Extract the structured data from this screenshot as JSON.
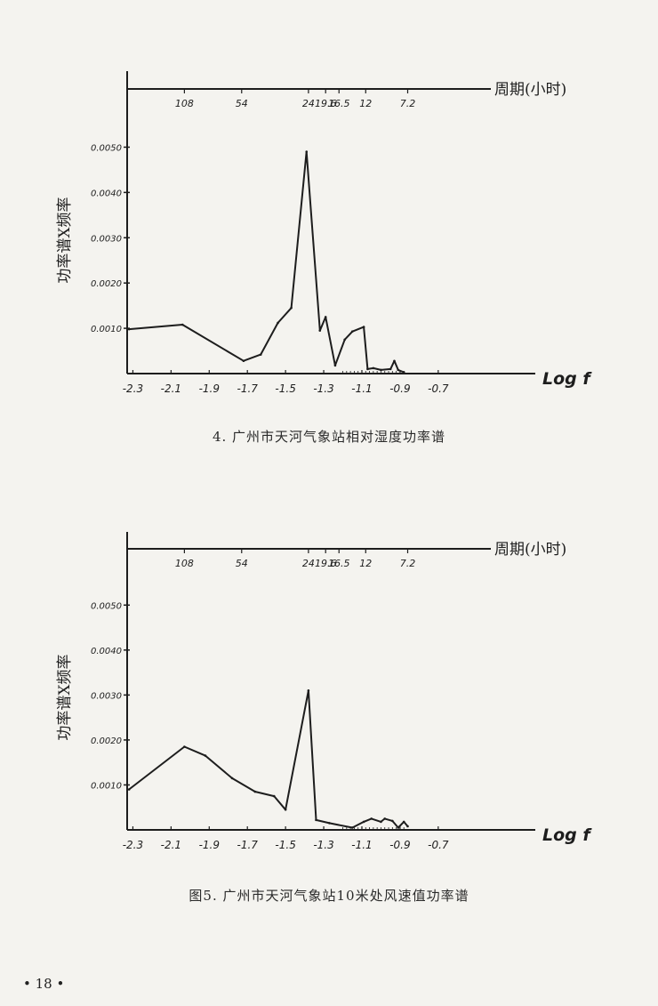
{
  "page": {
    "page_number": "• 18 •",
    "accent_color": "#1d1d1d",
    "paper_color": "#f4f3ef"
  },
  "chart_data": [
    {
      "type": "line",
      "caption": "4. 广州市天河气象站相对湿度功率谱",
      "ylabel": "功率谱X频率",
      "xlabel": "Log f",
      "top_axis_label": "周期(小时)",
      "top_axis_ticks": [
        {
          "x": -2.03,
          "label": "108"
        },
        {
          "x": -1.73,
          "label": "54"
        },
        {
          "x": -1.38,
          "label": "24"
        },
        {
          "x": -1.29,
          "label": "19.6"
        },
        {
          "x": -1.22,
          "label": "16.5"
        },
        {
          "x": -1.08,
          "label": "12"
        },
        {
          "x": -0.86,
          "label": "7.2"
        }
      ],
      "x_ticks": [
        -2.3,
        -2.1,
        -1.9,
        -1.7,
        -1.5,
        -1.3,
        -1.1,
        -0.9,
        -0.7
      ],
      "x_tick_labels": [
        "-2.3",
        "-2.1",
        "-1.9",
        "-1.7",
        "-1.5",
        "-1.3",
        "-1.1",
        "-0.9",
        "-0.7"
      ],
      "y_ticks": [
        0.001,
        0.002,
        0.003,
        0.004,
        0.005
      ],
      "y_tick_labels": [
        "0.0010",
        "0.0020",
        "0.0030",
        "0.0040",
        "0.0050"
      ],
      "xlim": [
        -2.33,
        -0.62
      ],
      "ylim": [
        0,
        0.0055
      ],
      "grid": false,
      "legend": "none",
      "series": [
        {
          "x": [
            -2.32,
            -2.04,
            -1.72,
            -1.63,
            -1.54,
            -1.47,
            -1.39,
            -1.32,
            -1.29,
            -1.24,
            -1.19,
            -1.15,
            -1.09,
            -1.07,
            -1.04,
            -1.0,
            -0.95,
            -0.93,
            -0.91,
            -0.88
          ],
          "y": [
            0.00098,
            0.00108,
            0.00028,
            0.00042,
            0.00112,
            0.00145,
            0.0049,
            0.00095,
            0.00125,
            0.00018,
            0.00075,
            0.00093,
            0.00103,
            0.0001,
            0.00012,
            8e-05,
            0.0001,
            0.00028,
            8e-05,
            3e-05
          ]
        }
      ]
    },
    {
      "type": "line",
      "caption": "图5. 广州市天河气象站10米处风速值功率谱",
      "ylabel": "功率谱X频率",
      "xlabel": "Log f",
      "top_axis_label": "周期(小时)",
      "top_axis_ticks": [
        {
          "x": -2.03,
          "label": "108"
        },
        {
          "x": -1.73,
          "label": "54"
        },
        {
          "x": -1.38,
          "label": "24"
        },
        {
          "x": -1.29,
          "label": "19.6"
        },
        {
          "x": -1.22,
          "label": "16.5"
        },
        {
          "x": -1.08,
          "label": "12"
        },
        {
          "x": -0.86,
          "label": "7.2"
        }
      ],
      "x_ticks": [
        -2.3,
        -2.1,
        -1.9,
        -1.7,
        -1.5,
        -1.3,
        -1.1,
        -0.9,
        -0.7
      ],
      "x_tick_labels": [
        "-2.3",
        "-2.1",
        "-1.9",
        "-1.7",
        "-1.5",
        "-1.3",
        "-1.1",
        "-0.9",
        "-0.7"
      ],
      "y_ticks": [
        0.001,
        0.002,
        0.003,
        0.004,
        0.005
      ],
      "y_tick_labels": [
        "0.0010",
        "0.0020",
        "0.0030",
        "0.0040",
        "0.0050"
      ],
      "xlim": [
        -2.33,
        -0.62
      ],
      "ylim": [
        0,
        0.0055
      ],
      "grid": false,
      "legend": "none",
      "series": [
        {
          "x": [
            -2.32,
            -2.03,
            -1.92,
            -1.78,
            -1.66,
            -1.56,
            -1.5,
            -1.38,
            -1.34,
            -1.27,
            -1.15,
            -1.09,
            -1.05,
            -1.0,
            -0.98,
            -0.94,
            -0.91,
            -0.88,
            -0.86
          ],
          "y": [
            0.0009,
            0.00185,
            0.00165,
            0.00115,
            0.00085,
            0.00075,
            0.00045,
            0.0031,
            0.00022,
            0.00015,
            5e-05,
            0.00018,
            0.00025,
            0.00018,
            0.00025,
            0.0002,
            5e-05,
            0.00018,
            8e-05
          ]
        }
      ]
    }
  ]
}
